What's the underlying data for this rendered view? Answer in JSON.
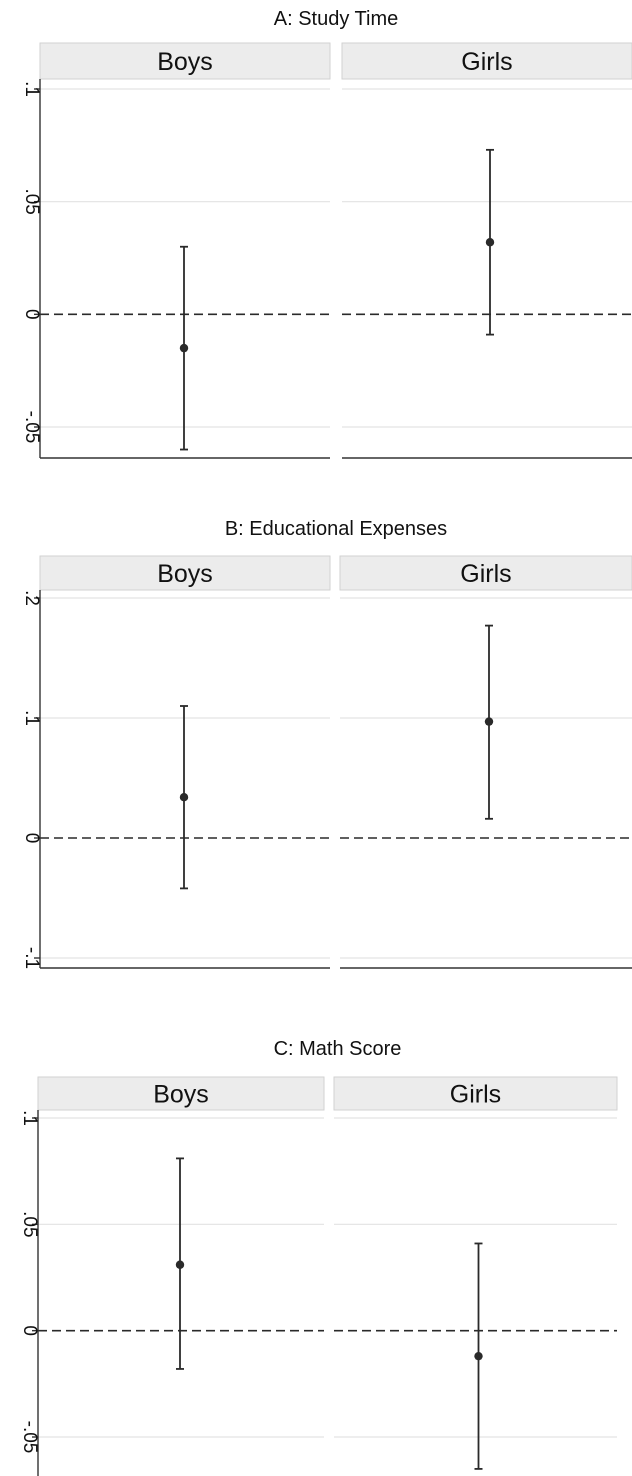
{
  "chart_data": [
    {
      "type": "scatter",
      "title": "A: Study Time",
      "ylim": [
        -0.065,
        0.105
      ],
      "yticks": [
        0.1,
        0.05,
        0,
        -0.05
      ],
      "ytick_labels": [
        ".1",
        ".05",
        "0",
        "-.05"
      ],
      "reference_line": 0,
      "grid": true,
      "facets": [
        {
          "name": "Boys",
          "estimate": -0.015,
          "ci_low": -0.06,
          "ci_high": 0.03
        },
        {
          "name": "Girls",
          "estimate": 0.032,
          "ci_low": -0.009,
          "ci_high": 0.073
        }
      ]
    },
    {
      "type": "scatter",
      "title": "B: Educational Expenses",
      "ylim": [
        -0.105,
        0.205
      ],
      "yticks": [
        0.2,
        0.1,
        0,
        -0.1
      ],
      "ytick_labels": [
        ".2",
        ".1",
        "0",
        "-.1"
      ],
      "reference_line": 0,
      "grid": true,
      "facets": [
        {
          "name": "Boys",
          "estimate": 0.034,
          "ci_low": -0.042,
          "ci_high": 0.11
        },
        {
          "name": "Girls",
          "estimate": 0.097,
          "ci_low": 0.016,
          "ci_high": 0.177
        }
      ]
    },
    {
      "type": "scatter",
      "title": "C: Math Score",
      "ylim": [
        -0.065,
        0.105
      ],
      "yticks": [
        0.1,
        0.05,
        0,
        -0.05
      ],
      "ytick_labels": [
        ".1",
        ".05",
        "0",
        "-.05"
      ],
      "reference_line": 0,
      "grid": true,
      "facets": [
        {
          "name": "Boys",
          "estimate": 0.031,
          "ci_low": -0.018,
          "ci_high": 0.081
        },
        {
          "name": "Girls",
          "estimate": -0.012,
          "ci_low": -0.065,
          "ci_high": 0.041
        }
      ]
    }
  ]
}
